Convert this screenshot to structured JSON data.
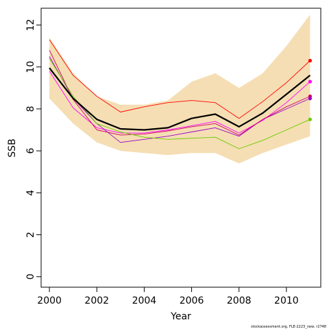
{
  "chart_data": {
    "type": "line",
    "title": "",
    "xlabel": "Year",
    "ylabel": "SSB",
    "xlim": [
      1999.65,
      2011.45
    ],
    "ylim": [
      -0.5,
      12.8
    ],
    "x_ticks": [
      2000,
      2002,
      2004,
      2006,
      2008,
      2010
    ],
    "y_ticks": [
      0,
      2,
      4,
      6,
      8,
      10,
      12
    ],
    "x": [
      2000,
      2001,
      2002,
      2003,
      2004,
      2005,
      2006,
      2007,
      2008,
      2009,
      2010,
      2011
    ],
    "band": {
      "color": "#f5deb3",
      "lower": [
        8.5,
        7.3,
        6.4,
        6.0,
        5.9,
        5.8,
        5.9,
        5.9,
        5.4,
        5.9,
        6.3,
        6.7
      ],
      "upper": [
        11.4,
        9.7,
        8.6,
        8.2,
        8.2,
        8.4,
        9.3,
        9.7,
        9.0,
        9.7,
        11.0,
        12.5
      ]
    },
    "series": [
      {
        "color": "#000000",
        "width": 2.2,
        "values": [
          9.95,
          8.5,
          7.5,
          7.05,
          7.0,
          7.1,
          7.55,
          7.75,
          7.15,
          7.8,
          8.7,
          9.6
        ]
      },
      {
        "color": "#ff0000",
        "width": 0.9,
        "values": [
          11.3,
          9.6,
          8.6,
          7.85,
          8.1,
          8.3,
          8.4,
          8.3,
          7.55,
          8.35,
          9.25,
          10.3
        ]
      },
      {
        "color": "#ff00ff",
        "width": 0.9,
        "values": [
          9.8,
          8.05,
          7.1,
          6.85,
          6.85,
          7.0,
          7.2,
          7.4,
          6.85,
          7.45,
          8.3,
          9.3
        ]
      },
      {
        "color": "#9900cc",
        "width": 0.9,
        "values": [
          10.5,
          8.5,
          7.3,
          6.4,
          6.55,
          6.7,
          6.9,
          7.1,
          6.7,
          7.5,
          8.0,
          8.5
        ]
      },
      {
        "color": "#cc0066",
        "width": 0.9,
        "values": [
          10.8,
          8.45,
          7.0,
          6.75,
          6.8,
          6.95,
          7.15,
          7.3,
          6.75,
          7.5,
          8.1,
          8.6
        ]
      },
      {
        "color": "#66cc00",
        "width": 0.9,
        "values": [
          10.4,
          8.6,
          7.3,
          6.9,
          6.65,
          6.55,
          6.6,
          6.65,
          6.1,
          6.5,
          7.0,
          7.5
        ]
      }
    ],
    "endpoints": [
      {
        "color": "#ff0000",
        "value": 10.3
      },
      {
        "color": "#ff00ff",
        "value": 9.3
      },
      {
        "color": "#cc0066",
        "value": 8.6
      },
      {
        "color": "#9900cc",
        "value": 8.5
      },
      {
        "color": "#66cc00",
        "value": 7.5
      }
    ],
    "grid": false,
    "legend": "none"
  },
  "credit": "stockassessment.org, FLE-2223_new, r2748"
}
